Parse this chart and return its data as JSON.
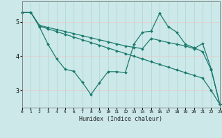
{
  "title": "",
  "xlabel": "Humidex (Indice chaleur)",
  "ylabel": "",
  "bg_color": "#cce8e8",
  "line_color": "#1a7a6e",
  "grid_color_v": "#aad4d4",
  "grid_color_h": "#e8c8c8",
  "x_ticks": [
    0,
    1,
    2,
    3,
    4,
    5,
    6,
    7,
    8,
    9,
    10,
    11,
    12,
    13,
    14,
    15,
    16,
    17,
    18,
    19,
    20,
    21,
    22,
    23
  ],
  "y_ticks": [
    3,
    4,
    5
  ],
  "ylim": [
    2.5,
    5.6
  ],
  "xlim": [
    0,
    23
  ],
  "series": [
    {
      "x": [
        0,
        1,
        2,
        3,
        4,
        5,
        6,
        7,
        8,
        9,
        10,
        11,
        12,
        13,
        14,
        15,
        16,
        17,
        18,
        19,
        20,
        21,
        22,
        23
      ],
      "y": [
        5.28,
        5.28,
        4.9,
        4.84,
        4.78,
        4.72,
        4.66,
        4.6,
        4.54,
        4.48,
        4.42,
        4.36,
        4.3,
        4.26,
        4.22,
        4.52,
        4.46,
        4.4,
        4.35,
        4.3,
        4.22,
        4.37,
        3.63,
        2.6
      ]
    },
    {
      "x": [
        0,
        1,
        2,
        3,
        4,
        5,
        6,
        7,
        8,
        9,
        10,
        11,
        12,
        13,
        14,
        15,
        16,
        17,
        18,
        19,
        20,
        21,
        22,
        23
      ],
      "y": [
        5.28,
        5.28,
        4.88,
        4.8,
        4.72,
        4.64,
        4.56,
        4.48,
        4.4,
        4.32,
        4.24,
        4.16,
        4.08,
        4.0,
        3.92,
        3.84,
        3.76,
        3.68,
        3.6,
        3.52,
        3.44,
        3.36,
        3.0,
        2.6
      ]
    },
    {
      "x": [
        0,
        1,
        2,
        3,
        4,
        5,
        6,
        7,
        8,
        9,
        10,
        11,
        12,
        13,
        14,
        15,
        16,
        17,
        18,
        19,
        20,
        21,
        22,
        23
      ],
      "y": [
        5.28,
        5.28,
        4.86,
        4.35,
        3.93,
        3.62,
        3.56,
        3.24,
        2.88,
        3.23,
        3.55,
        3.55,
        3.52,
        4.35,
        4.7,
        4.73,
        5.25,
        4.86,
        4.7,
        4.35,
        4.25,
        4.13,
        3.6,
        2.6
      ]
    }
  ]
}
